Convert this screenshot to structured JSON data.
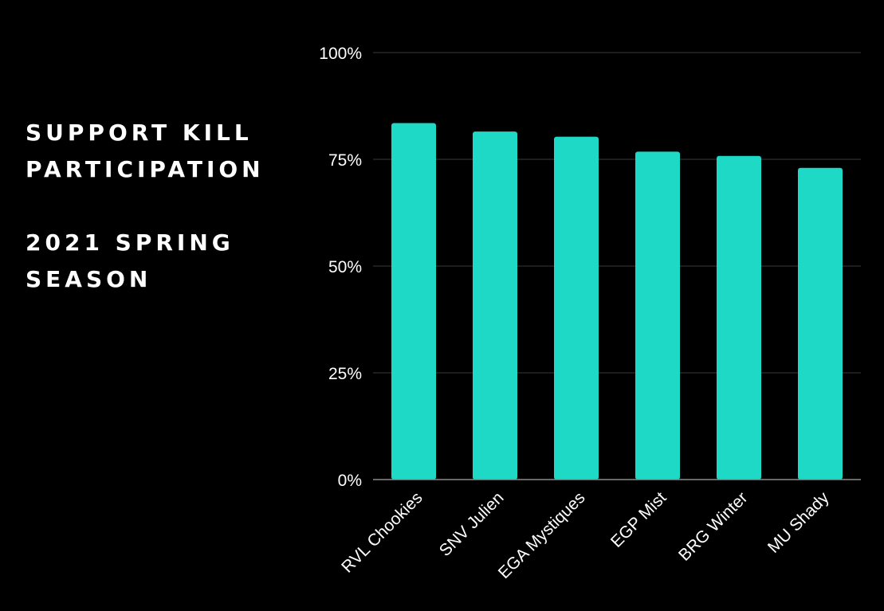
{
  "title": {
    "line1": "SUPPORT KILL",
    "line2": "PARTICIPATION",
    "line3": "2021 SPRING",
    "line4": "SEASON"
  },
  "colors": {
    "background": "#000000",
    "bar": "#1dd9c6",
    "grid": "#3a3a3a",
    "axis": "#8a8a8a",
    "text": "#ffffff"
  },
  "chart_data": {
    "type": "bar",
    "title": "SUPPORT KILL PARTICIPATION 2021 SPRING SEASON",
    "categories": [
      "RVL Chookies",
      "SNV Julien",
      "EGA Mystiques",
      "EGP Mist",
      "BRG Winter",
      "MU Shady"
    ],
    "values": [
      83.5,
      81.5,
      80.3,
      76.8,
      75.8,
      73.0
    ],
    "ylim": [
      0,
      100
    ],
    "yticks": [
      0,
      25,
      50,
      75,
      100
    ],
    "ytick_labels": [
      "0%",
      "25%",
      "50%",
      "75%",
      "100%"
    ],
    "xlabel": "",
    "ylabel": "",
    "grid": true,
    "legend": "none"
  }
}
